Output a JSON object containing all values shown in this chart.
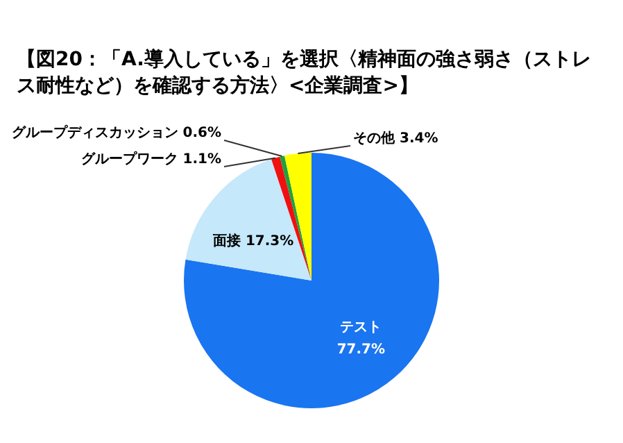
{
  "chart_data": {
    "type": "pie",
    "title": "【図20：「A.導入している」を選択〈精神面の強さ弱さ（ストレス耐性など）を確認する方法〉<企業調査>】",
    "categories": [
      "テスト",
      "面接",
      "グループワーク",
      "グループディスカッション",
      "その他"
    ],
    "values": [
      77.7,
      17.3,
      1.1,
      0.6,
      3.4
    ],
    "value_labels": [
      "77.7%",
      "17.3%",
      "1.1%",
      "0.6%",
      "3.4%"
    ],
    "colors": [
      "#1a75f0",
      "#c5e8fa",
      "#f01010",
      "#20a040",
      "#ffff00"
    ],
    "legend": false
  }
}
